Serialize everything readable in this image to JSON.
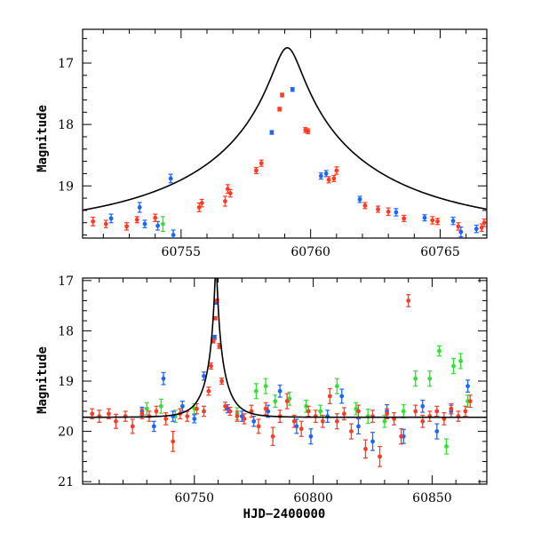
{
  "chart_data": [
    {
      "type": "scatter",
      "title": "",
      "xlabel": "",
      "ylabel": "Magnitude",
      "xlim": [
        60751.2,
        60766.8
      ],
      "ylim": [
        19.85,
        16.45
      ],
      "y_inverted": true,
      "xticks": [
        60755,
        60760,
        60765
      ],
      "yticks": [
        17,
        18,
        19
      ],
      "colors": {
        "blue": "#1a66ff",
        "red": "#ff3b24",
        "green": "#33e033",
        "model": "#000000"
      },
      "model": {
        "t0": 60759.1,
        "u0": 0.065,
        "tE": 8.0,
        "mag_base": 19.72
      },
      "series": [
        {
          "color": "blue",
          "points": [
            [
              60752.3,
              19.53,
              0.07
            ],
            [
              60753.4,
              19.35,
              0.08
            ],
            [
              60753.6,
              19.62,
              0.06
            ],
            [
              60754.1,
              19.65,
              0.07
            ],
            [
              60754.6,
              18.88,
              0.07
            ],
            [
              60754.7,
              19.8,
              0.08
            ],
            [
              60758.5,
              18.13,
              0.03
            ],
            [
              60759.3,
              17.43,
              0.03
            ],
            [
              60760.4,
              18.84,
              0.05
            ],
            [
              60760.6,
              18.8,
              0.05
            ],
            [
              60761.9,
              19.22,
              0.05
            ],
            [
              60763.3,
              19.43,
              0.06
            ],
            [
              60764.4,
              19.52,
              0.05
            ],
            [
              60765.5,
              19.57,
              0.06
            ],
            [
              60765.8,
              19.75,
              0.08
            ],
            [
              60766.4,
              19.7,
              0.06
            ]
          ]
        },
        {
          "color": "red",
          "points": [
            [
              60751.6,
              19.58,
              0.07
            ],
            [
              60752.1,
              19.62,
              0.06
            ],
            [
              60752.9,
              19.66,
              0.06
            ],
            [
              60753.3,
              19.55,
              0.05
            ],
            [
              60754.0,
              19.52,
              0.06
            ],
            [
              60755.7,
              19.35,
              0.07
            ],
            [
              60755.8,
              19.28,
              0.06
            ],
            [
              60756.7,
              19.25,
              0.08
            ],
            [
              60756.8,
              19.05,
              0.07
            ],
            [
              60756.9,
              19.12,
              0.06
            ],
            [
              60757.9,
              18.75,
              0.05
            ],
            [
              60758.1,
              18.63,
              0.05
            ],
            [
              60758.8,
              17.75,
              0.03
            ],
            [
              60758.9,
              17.52,
              0.03
            ],
            [
              60759.8,
              18.09,
              0.04
            ],
            [
              60759.9,
              18.11,
              0.04
            ],
            [
              60760.7,
              18.9,
              0.05
            ],
            [
              60760.9,
              18.88,
              0.05
            ],
            [
              60761.0,
              18.75,
              0.06
            ],
            [
              60762.1,
              19.32,
              0.05
            ],
            [
              60762.6,
              19.38,
              0.05
            ],
            [
              60763.0,
              19.42,
              0.06
            ],
            [
              60763.6,
              19.53,
              0.05
            ],
            [
              60764.7,
              19.56,
              0.06
            ],
            [
              60764.9,
              19.58,
              0.05
            ],
            [
              60765.7,
              19.66,
              0.06
            ],
            [
              60766.6,
              19.68,
              0.06
            ],
            [
              60766.7,
              19.6,
              0.06
            ]
          ]
        },
        {
          "color": "green",
          "points": [
            [
              60754.3,
              19.62,
              0.12
            ]
          ]
        }
      ]
    },
    {
      "type": "scatter",
      "title": "",
      "xlabel": "HJD−2400000",
      "ylabel": "Magnitude",
      "xlim": [
        60703,
        60873
      ],
      "ylim": [
        21.05,
        16.95
      ],
      "y_inverted": true,
      "xticks": [
        60750,
        60800,
        60850
      ],
      "yticks": [
        17,
        18,
        19,
        20,
        21
      ],
      "colors": {
        "blue": "#1a66ff",
        "red": "#ff3b24",
        "green": "#33e033",
        "model": "#000000"
      },
      "model": {
        "t0": 60759.1,
        "u0": 0.065,
        "tE": 8.0,
        "mag_base": 19.72
      },
      "series": [
        {
          "color": "green",
          "points": [
            [
              60730,
              19.55,
              0.12
            ],
            [
              60736,
              19.5,
              0.14
            ],
            [
              60742,
              19.7,
              0.12
            ],
            [
              60750,
              19.55,
              0.1
            ],
            [
              60768,
              19.65,
              0.12
            ],
            [
              60776,
              19.2,
              0.15
            ],
            [
              60780,
              19.1,
              0.15
            ],
            [
              60784,
              19.4,
              0.12
            ],
            [
              60790,
              19.35,
              0.13
            ],
            [
              60797,
              19.5,
              0.12
            ],
            [
              60803,
              19.6,
              0.12
            ],
            [
              60810,
              19.1,
              0.15
            ],
            [
              60818,
              19.55,
              0.12
            ],
            [
              60823,
              19.7,
              0.14
            ],
            [
              60830,
              19.8,
              0.12
            ],
            [
              60838,
              19.6,
              0.13
            ],
            [
              60843,
              18.95,
              0.15
            ],
            [
              60849,
              18.95,
              0.15
            ],
            [
              60853,
              18.4,
              0.1
            ],
            [
              60856,
              20.3,
              0.15
            ],
            [
              60859,
              18.7,
              0.15
            ],
            [
              60862,
              18.6,
              0.15
            ],
            [
              60865,
              19.4,
              0.12
            ]
          ]
        },
        {
          "color": "blue",
          "points": [
            [
              60728,
              19.6,
              0.08
            ],
            [
              60733,
              19.9,
              0.1
            ],
            [
              60737,
              18.95,
              0.12
            ],
            [
              60741,
              19.7,
              0.1
            ],
            [
              60745,
              19.5,
              0.1
            ],
            [
              60750,
              19.75,
              0.08
            ],
            [
              60754,
              18.9,
              0.08
            ],
            [
              60758.5,
              18.13,
              0.04
            ],
            [
              60759.3,
              17.43,
              0.04
            ],
            [
              60764,
              19.55,
              0.08
            ],
            [
              60770,
              19.7,
              0.1
            ],
            [
              60775,
              19.8,
              0.1
            ],
            [
              60781,
              19.6,
              0.12
            ],
            [
              60786,
              19.2,
              0.12
            ],
            [
              60793,
              19.9,
              0.14
            ],
            [
              60799,
              20.1,
              0.15
            ],
            [
              60806,
              19.7,
              0.12
            ],
            [
              60812,
              19.3,
              0.14
            ],
            [
              60819,
              19.9,
              0.15
            ],
            [
              60825,
              20.2,
              0.18
            ],
            [
              60831,
              19.6,
              0.13
            ],
            [
              60838,
              20.1,
              0.14
            ],
            [
              60846,
              19.5,
              0.12
            ],
            [
              60852,
              20.0,
              0.15
            ],
            [
              60858,
              19.6,
              0.12
            ],
            [
              60865,
              19.1,
              0.12
            ]
          ]
        },
        {
          "color": "red",
          "points": [
            [
              60707,
              19.65,
              0.1
            ],
            [
              60710,
              19.7,
              0.12
            ],
            [
              60714,
              19.65,
              0.1
            ],
            [
              60717,
              19.8,
              0.14
            ],
            [
              60721,
              19.7,
              0.1
            ],
            [
              60724,
              19.9,
              0.14
            ],
            [
              60728,
              19.65,
              0.1
            ],
            [
              60731,
              19.7,
              0.1
            ],
            [
              60734,
              19.6,
              0.1
            ],
            [
              60738,
              19.75,
              0.12
            ],
            [
              60741,
              20.2,
              0.2
            ],
            [
              60744,
              19.65,
              0.1
            ],
            [
              60747,
              19.7,
              0.1
            ],
            [
              60751,
              19.55,
              0.1
            ],
            [
              60754,
              19.6,
              0.1
            ],
            [
              60756,
              19.2,
              0.08
            ],
            [
              60757,
              18.7,
              0.06
            ],
            [
              60758,
              18.2,
              0.04
            ],
            [
              60758.8,
              17.75,
              0.03
            ],
            [
              60759.5,
              17.4,
              0.03
            ],
            [
              60760.5,
              18.3,
              0.05
            ],
            [
              60761.5,
              19.0,
              0.06
            ],
            [
              60763,
              19.5,
              0.08
            ],
            [
              60765,
              19.6,
              0.08
            ],
            [
              60768,
              19.7,
              0.1
            ],
            [
              60771,
              19.75,
              0.1
            ],
            [
              60774,
              19.6,
              0.12
            ],
            [
              60777,
              19.9,
              0.14
            ],
            [
              60780,
              19.55,
              0.12
            ],
            [
              60783,
              20.1,
              0.18
            ],
            [
              60786,
              19.7,
              0.12
            ],
            [
              60789,
              19.4,
              0.15
            ],
            [
              60792,
              19.8,
              0.12
            ],
            [
              60795,
              19.95,
              0.15
            ],
            [
              60798,
              19.6,
              0.1
            ],
            [
              60801,
              19.7,
              0.12
            ],
            [
              60804,
              19.8,
              0.12
            ],
            [
              60807,
              19.3,
              0.15
            ],
            [
              60810,
              19.8,
              0.15
            ],
            [
              60813,
              19.65,
              0.12
            ],
            [
              60816,
              20.0,
              0.15
            ],
            [
              60819,
              19.6,
              0.12
            ],
            [
              60822,
              20.35,
              0.18
            ],
            [
              60825,
              19.7,
              0.12
            ],
            [
              60828,
              20.5,
              0.2
            ],
            [
              60831,
              19.65,
              0.1
            ],
            [
              60834,
              19.75,
              0.12
            ],
            [
              60837,
              20.1,
              0.15
            ],
            [
              60840,
              17.4,
              0.12
            ],
            [
              60843,
              19.6,
              0.12
            ],
            [
              60846,
              19.8,
              0.12
            ],
            [
              60849,
              19.7,
              0.1
            ],
            [
              60852,
              19.6,
              0.1
            ],
            [
              60855,
              19.75,
              0.12
            ],
            [
              60858,
              19.55,
              0.1
            ],
            [
              60861,
              19.7,
              0.1
            ],
            [
              60864,
              19.6,
              0.1
            ],
            [
              60866,
              19.4,
              0.12
            ]
          ]
        }
      ]
    }
  ]
}
